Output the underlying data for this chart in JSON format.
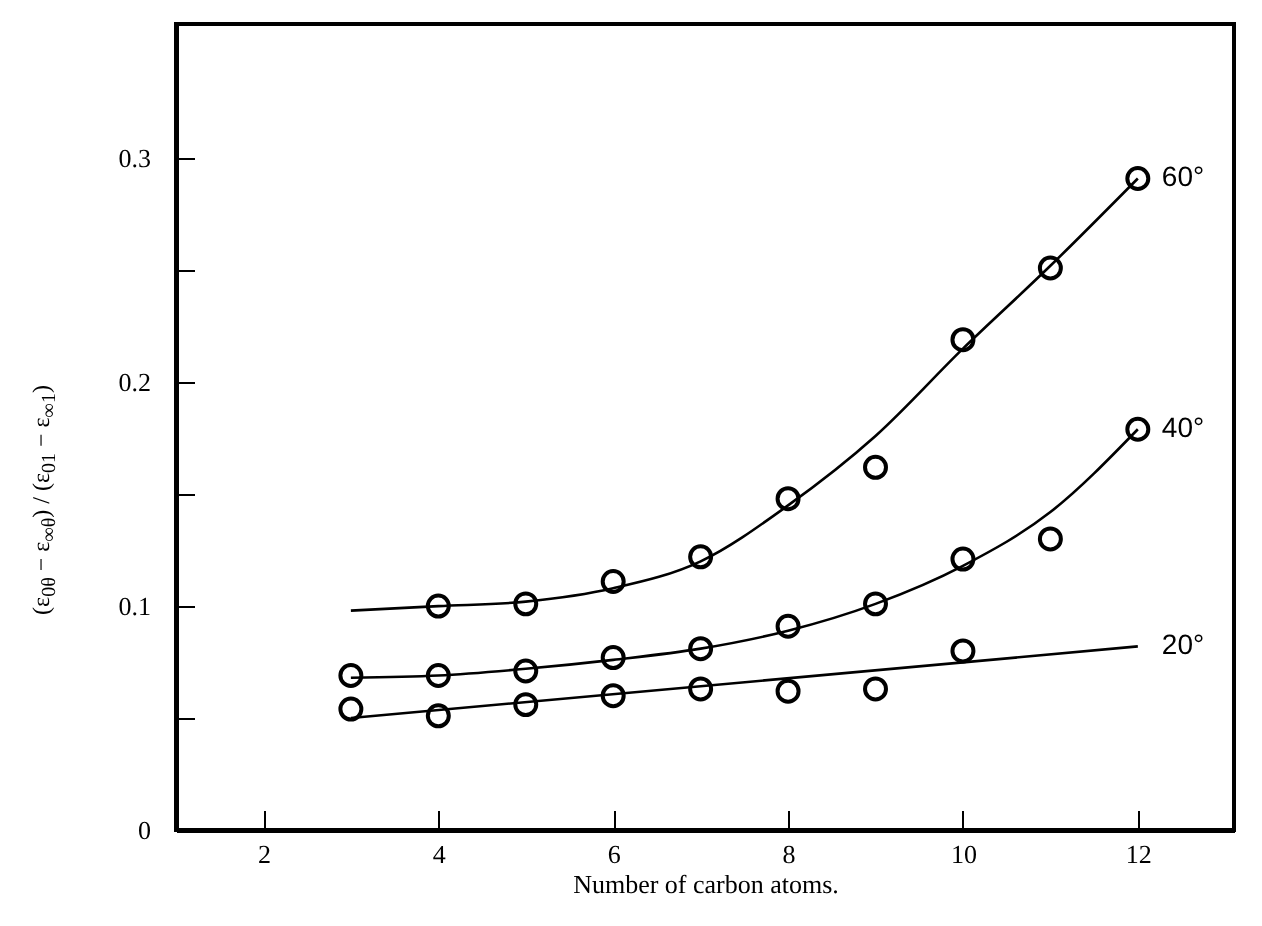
{
  "chart_data": {
    "type": "scatter",
    "xlabel": "Number of carbon atoms.",
    "ylabel": "(ε$_{0θ}$ − ε$_{∞θ}$) / (ε$_{01}$ − ε$_{∞1}$)",
    "xlim": [
      1,
      13.1
    ],
    "ylim": [
      0,
      0.36
    ],
    "xticks": [
      2,
      4,
      6,
      8,
      10,
      12
    ],
    "yticks": [
      0,
      {
        "value": 0.05,
        "label": null
      },
      0.1,
      {
        "value": 0.15,
        "label": null
      },
      0.2,
      {
        "value": 0.25,
        "label": null
      },
      0.3
    ],
    "grid": false,
    "series": [
      {
        "marker": "circle",
        "color": "#000000",
        "x": [
          4,
          5,
          6,
          7,
          8,
          9,
          10,
          11,
          12
        ],
        "values": [
          0.1,
          0.101,
          0.111,
          0.122,
          0.148,
          0.162,
          0.219,
          0.251,
          0.291
        ]
      },
      {
        "marker": "circle",
        "color": "#000000",
        "x": [
          3,
          4,
          5,
          6,
          7,
          8,
          9,
          10,
          11,
          12
        ],
        "values": [
          0.069,
          0.069,
          0.071,
          0.077,
          0.081,
          0.091,
          0.101,
          0.121,
          0.13,
          0.179
        ]
      },
      {
        "marker": "circle",
        "color": "#000000",
        "x": [
          3,
          4,
          5,
          6,
          7,
          8,
          9,
          10
        ],
        "values": [
          0.054,
          0.051,
          0.056,
          0.06,
          0.063,
          0.062,
          0.063,
          0.08
        ]
      },
      {
        "type": "line",
        "name": "60°",
        "marker": "none",
        "line_style": "solid",
        "color": "#000000",
        "x": [
          3,
          4,
          5,
          6,
          7,
          8,
          9,
          10,
          11,
          12
        ],
        "values": [
          0.098,
          0.1,
          0.102,
          0.108,
          0.12,
          0.145,
          0.176,
          0.215,
          0.252,
          0.291
        ]
      },
      {
        "type": "line",
        "name": "40°",
        "marker": "none",
        "line_style": "solid",
        "color": "#000000",
        "x": [
          3,
          4,
          5,
          6,
          7,
          8,
          9,
          10,
          11,
          12
        ],
        "values": [
          0.068,
          0.069,
          0.072,
          0.076,
          0.081,
          0.089,
          0.101,
          0.118,
          0.142,
          0.179
        ]
      },
      {
        "type": "line",
        "name": "20°",
        "marker": "none",
        "line_style": "solid",
        "color": "#000000",
        "x": [
          3,
          12
        ],
        "values": [
          0.05,
          0.082
        ]
      }
    ]
  }
}
